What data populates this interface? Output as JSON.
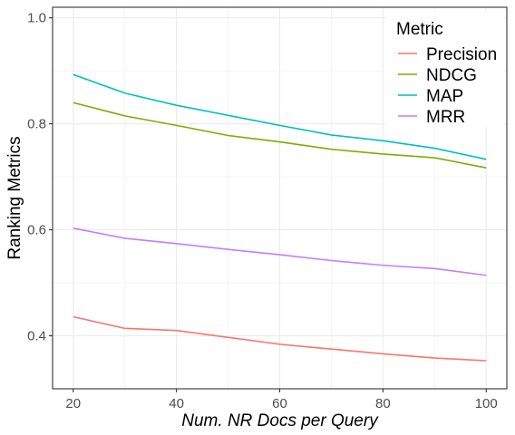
{
  "chart_data": {
    "type": "line",
    "xlabel": "Num. NR Docs per Query",
    "ylabel": "Ranking Metrics",
    "xlim": [
      16,
      104
    ],
    "ylim": [
      0.3,
      1.02
    ],
    "x_ticks": [
      20,
      40,
      60,
      80,
      100
    ],
    "y_ticks": [
      0.4,
      0.6,
      0.8,
      1.0
    ],
    "x_tick_labels": [
      "20",
      "40",
      "60",
      "80",
      "100"
    ],
    "y_tick_labels": [
      "0.4",
      "0.6",
      "0.8",
      "1.0"
    ],
    "grid": true,
    "legend": {
      "title": "Metric",
      "position": "top-right"
    },
    "x": [
      20,
      30,
      40,
      50,
      60,
      70,
      80,
      90,
      100
    ],
    "series": [
      {
        "name": "Precision",
        "color": "#F8766D",
        "values": [
          0.436,
          0.414,
          0.41,
          0.397,
          0.384,
          0.375,
          0.366,
          0.358,
          0.353
        ]
      },
      {
        "name": "NDCG",
        "color": "#7CAE00",
        "values": [
          0.84,
          0.815,
          0.797,
          0.778,
          0.766,
          0.752,
          0.743,
          0.736,
          0.717
        ]
      },
      {
        "name": "MAP",
        "color": "#00BFC4",
        "values": [
          0.893,
          0.858,
          0.835,
          0.816,
          0.797,
          0.779,
          0.768,
          0.754,
          0.733
        ]
      },
      {
        "name": "MRR",
        "color": "#C77CFF",
        "values": [
          0.603,
          0.584,
          0.574,
          0.563,
          0.553,
          0.542,
          0.533,
          0.527,
          0.514
        ]
      }
    ]
  }
}
